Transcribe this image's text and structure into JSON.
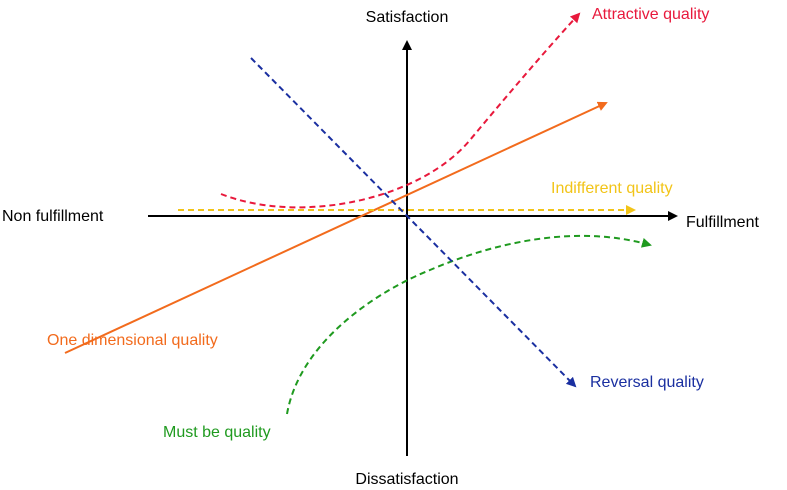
{
  "axes": {
    "y_top_label": "Satisfaction",
    "y_bottom_label": "Dissatisfaction",
    "x_left_label": "Non fulfillment",
    "x_right_label": "Fulfillment",
    "axis_color": "#000000"
  },
  "curves": {
    "attractive": {
      "label": "Attractive quality",
      "color": "#e8193c",
      "style": "dashed"
    },
    "one_dimensional": {
      "label": "One dimensional quality",
      "color": "#f26b1d",
      "style": "solid"
    },
    "indifferent": {
      "label": "Indifferent quality",
      "color": "#f2c418",
      "style": "dashed"
    },
    "must_be": {
      "label": "Must be quality",
      "color": "#1f9a1f",
      "style": "dashed"
    },
    "reversal": {
      "label": "Reversal quality",
      "color": "#1a2fa0",
      "style": "dashed"
    }
  }
}
